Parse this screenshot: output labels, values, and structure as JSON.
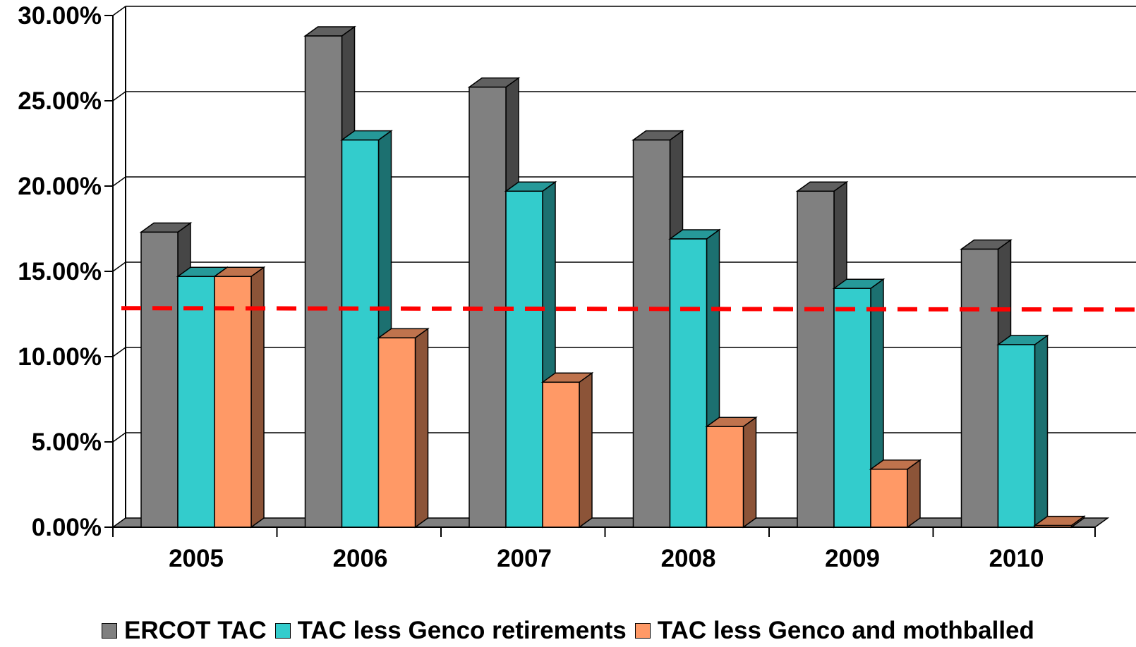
{
  "chart_data": {
    "type": "bar",
    "categories": [
      "2005",
      "2006",
      "2007",
      "2008",
      "2009",
      "2010"
    ],
    "series": [
      {
        "name": "ERCOT TAC",
        "values": [
          17.3,
          28.8,
          25.8,
          22.7,
          19.7,
          16.3
        ],
        "color": "#808080"
      },
      {
        "name": "TAC less Genco retirements",
        "values": [
          14.7,
          22.7,
          19.7,
          16.9,
          14.0,
          10.7
        ],
        "color": "#33CCCC"
      },
      {
        "name": "TAC less Genco and mothballed",
        "values": [
          14.7,
          11.1,
          8.5,
          5.9,
          3.4,
          0.1
        ],
        "color": "#FF9966"
      }
    ],
    "reference_line": {
      "value": 12.8,
      "color": "#FF0000",
      "style": "dashed"
    },
    "y_ticks": [
      "0.00%",
      "5.00%",
      "10.00%",
      "15.00%",
      "20.00%",
      "25.00%",
      "30.00%"
    ],
    "ylim": [
      0,
      30
    ],
    "grid": true,
    "legend_position": "bottom",
    "title": "",
    "xlabel": "",
    "ylabel": ""
  }
}
